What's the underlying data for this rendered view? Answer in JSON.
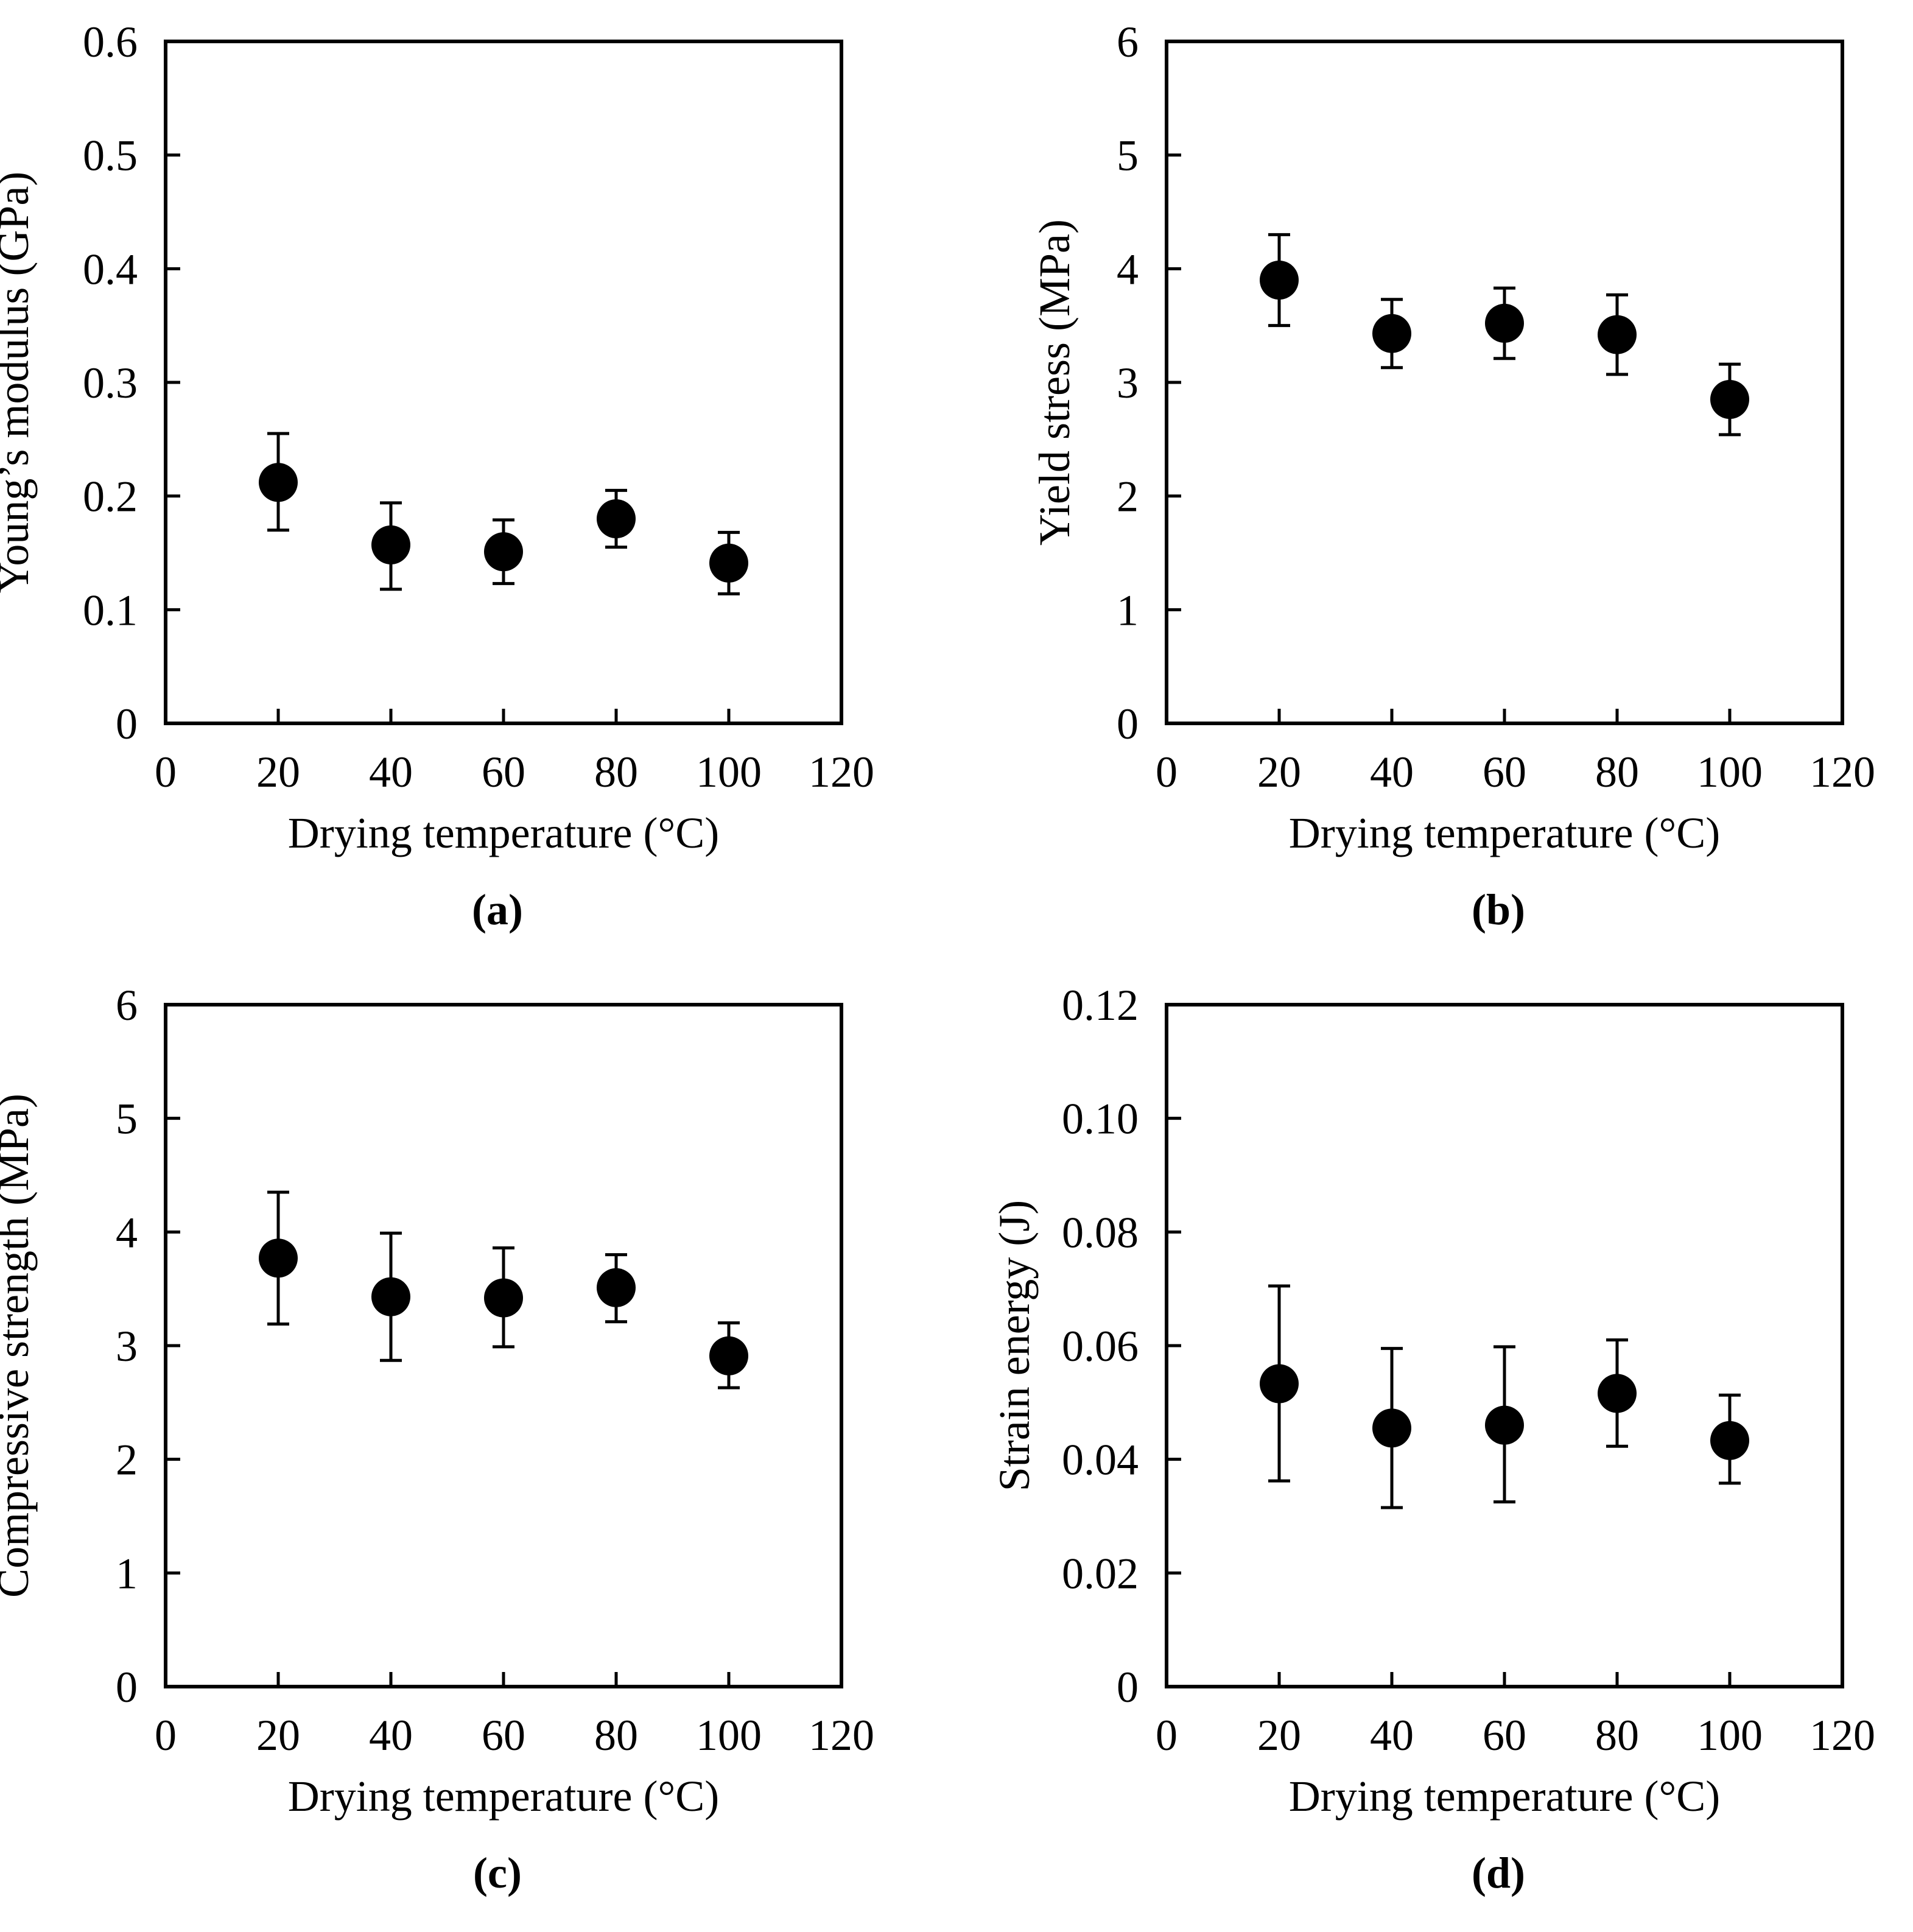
{
  "colors": {
    "ink": "#000000",
    "background": "#ffffff"
  },
  "chart_data": [
    {
      "panel_label": "(a)",
      "type": "scatter",
      "xlabel": "Drying temperature (°C)",
      "ylabel": "Young’s modulus (GPa)",
      "xlim": [
        0,
        120
      ],
      "ylim": [
        0,
        0.6
      ],
      "xticks": [
        "0",
        "20",
        "40",
        "60",
        "80",
        "100",
        "120"
      ],
      "yticks": [
        "0",
        "0.1",
        "0.2",
        "0.3",
        "0.4",
        "0.5",
        "0.6"
      ],
      "grid": false,
      "series": [
        {
          "name": "Young’s modulus",
          "x": [
            20,
            40,
            60,
            80,
            100
          ],
          "y": [
            0.212,
            0.157,
            0.151,
            0.18,
            0.141
          ],
          "err_low": [
            0.17,
            0.118,
            0.123,
            0.155,
            0.114
          ],
          "err_high": [
            0.255,
            0.194,
            0.179,
            0.205,
            0.168
          ]
        }
      ]
    },
    {
      "panel_label": "(b)",
      "type": "scatter",
      "xlabel": "Drying temperature (°C)",
      "ylabel": "Yield stress (MPa)",
      "xlim": [
        0,
        120
      ],
      "ylim": [
        0,
        6
      ],
      "xticks": [
        "0",
        "20",
        "40",
        "60",
        "80",
        "100",
        "120"
      ],
      "yticks": [
        "0",
        "1",
        "2",
        "3",
        "4",
        "5",
        "6"
      ],
      "grid": false,
      "series": [
        {
          "name": "Yield stress",
          "x": [
            20,
            40,
            60,
            80,
            100
          ],
          "y": [
            3.9,
            3.43,
            3.52,
            3.42,
            2.85
          ],
          "err_low": [
            3.5,
            3.13,
            3.21,
            3.07,
            2.54
          ],
          "err_high": [
            4.3,
            3.73,
            3.83,
            3.77,
            3.16
          ]
        }
      ]
    },
    {
      "panel_label": "(c)",
      "type": "scatter",
      "xlabel": "Drying temperature (°C)",
      "ylabel": "Compressive strength (MPa)",
      "xlim": [
        0,
        120
      ],
      "ylim": [
        0,
        6
      ],
      "xticks": [
        "0",
        "20",
        "40",
        "60",
        "80",
        "100",
        "120"
      ],
      "yticks": [
        "0",
        "1",
        "2",
        "3",
        "4",
        "5",
        "6"
      ],
      "grid": false,
      "series": [
        {
          "name": "Compressive strength",
          "x": [
            20,
            40,
            60,
            80,
            100
          ],
          "y": [
            3.77,
            3.43,
            3.42,
            3.51,
            2.91
          ],
          "err_low": [
            3.19,
            2.87,
            2.99,
            3.21,
            2.63
          ],
          "err_high": [
            4.35,
            3.99,
            3.86,
            3.8,
            3.2
          ]
        }
      ]
    },
    {
      "panel_label": "(d)",
      "type": "scatter",
      "xlabel": "Drying temperature (°C)",
      "ylabel": "Strain energy (J)",
      "xlim": [
        0,
        120
      ],
      "ylim": [
        0,
        0.12
      ],
      "xticks": [
        "0",
        "20",
        "40",
        "60",
        "80",
        "100",
        "120"
      ],
      "yticks": [
        "0",
        "0.02",
        "0.04",
        "0.06",
        "0.08",
        "0.10",
        "0.12"
      ],
      "grid": false,
      "series": [
        {
          "name": "Strain energy",
          "x": [
            20,
            40,
            60,
            80,
            100
          ],
          "y": [
            0.0533,
            0.0455,
            0.046,
            0.0516,
            0.0433
          ],
          "err_low": [
            0.0362,
            0.0315,
            0.0325,
            0.0423,
            0.0358
          ],
          "err_high": [
            0.0705,
            0.0595,
            0.0598,
            0.061,
            0.0513
          ]
        }
      ]
    }
  ]
}
